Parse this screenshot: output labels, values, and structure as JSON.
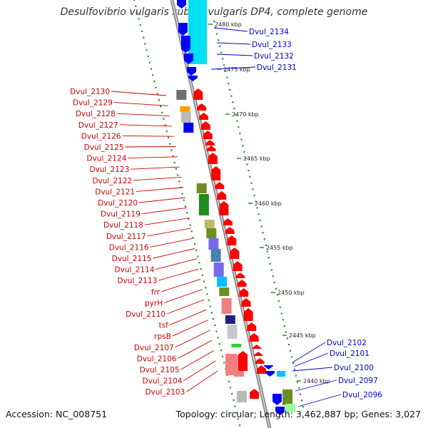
{
  "title": "Desulfovibrio vulgaris subsp. vulgaris DP4, complete genome",
  "footer": {
    "accession": "Accession: NC_008751",
    "topology": "Topology: circular; Length: 3,462,887 bp; Genes: 3,027"
  },
  "colors": {
    "backbone": "#8c8c8c",
    "ruler_dots": "#2e8b2e",
    "forward_label": "#cc0000",
    "reverse_label": "#0000cc",
    "forward_arrow": "#ff0000",
    "reverse_arrow": "#0000ff",
    "reverse_cds": "#00e0f0"
  },
  "ruler": {
    "unit": "kbp",
    "ticks": [
      "2440 kbp",
      "2445 kbp",
      "2450 kbp",
      "2455 kbp",
      "2460 kbp",
      "2465 kbp",
      "2470 kbp",
      "2475 kbp",
      "2480 kbp"
    ]
  },
  "genes_forward": [
    "Dvul_2130",
    "Dvul_2129",
    "Dvul_2128",
    "Dvul_2127",
    "Dvul_2126",
    "Dvul_2125",
    "Dvul_2124",
    "Dvul_2123",
    "Dvul_2122",
    "Dvul_2121",
    "Dvul_2120",
    "Dvul_2119",
    "Dvul_2118",
    "Dvul_2117",
    "Dvul_2116",
    "Dvul_2115",
    "Dvul_2114",
    "Dvul_2113",
    "frr",
    "pyrH",
    "Dvul_2110",
    "tsf",
    "rpsB",
    "Dvul_2107",
    "Dvul_2106",
    "Dvul_2105",
    "Dvul_2104",
    "Dvul_2103"
  ],
  "genes_reverse_top": [
    "Dvul_2134",
    "Dvul_2133",
    "Dvul_2132",
    "Dvul_2131"
  ],
  "genes_reverse_bottom": [
    "Dvul_2102",
    "Dvul_2101",
    "Dvul_2100",
    "Dvul_2097",
    "Dvul_2096"
  ],
  "cog_colors": [
    "#6e6e6e",
    "#ff9900",
    "#b9b9b9",
    "#0000ff",
    "#6b8e23",
    "#228b22",
    "#bdb76b",
    "#6b8e23",
    "#7b68ee",
    "#4682b4",
    "#7b68ee",
    "#00bfff",
    "#6b8e23",
    "#f08080",
    "#1f1f7a",
    "#c8c8c8",
    "#32cd32",
    "#f08080"
  ]
}
